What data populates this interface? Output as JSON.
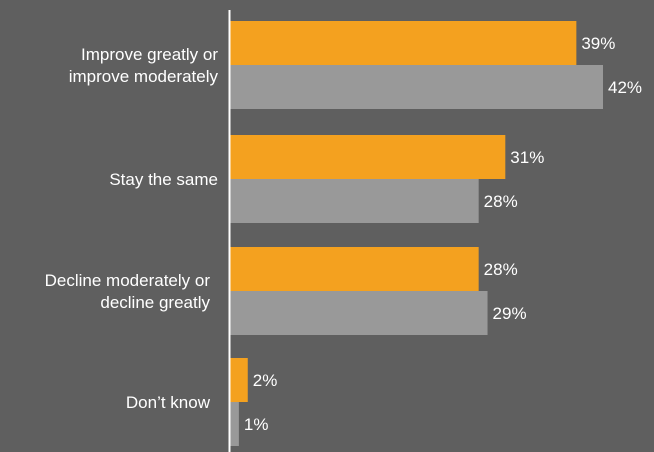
{
  "chart_data": {
    "type": "bar",
    "orientation": "horizontal",
    "title": "",
    "xlabel": "",
    "ylabel": "",
    "categories": [
      [
        "Improve greatly or",
        "improve moderately"
      ],
      [
        "Stay the same"
      ],
      [
        "Decline moderately or",
        "decline greatly"
      ],
      [
        "Don’t know"
      ]
    ],
    "series": [
      {
        "values": [
          39,
          31,
          28,
          2
        ],
        "labels": [
          "39%",
          "31%",
          "28%",
          "2%"
        ],
        "color": "#f4a11f"
      },
      {
        "values": [
          42,
          28,
          29,
          1
        ],
        "labels": [
          "42%",
          "28%",
          "29%",
          "1%"
        ],
        "color": "#999999"
      }
    ],
    "xlim": [
      0,
      45
    ],
    "grid": false,
    "legend": "none",
    "background_color": "#5f5f5f",
    "axis_color": "#ffffff",
    "text_color": "#ffffff"
  }
}
